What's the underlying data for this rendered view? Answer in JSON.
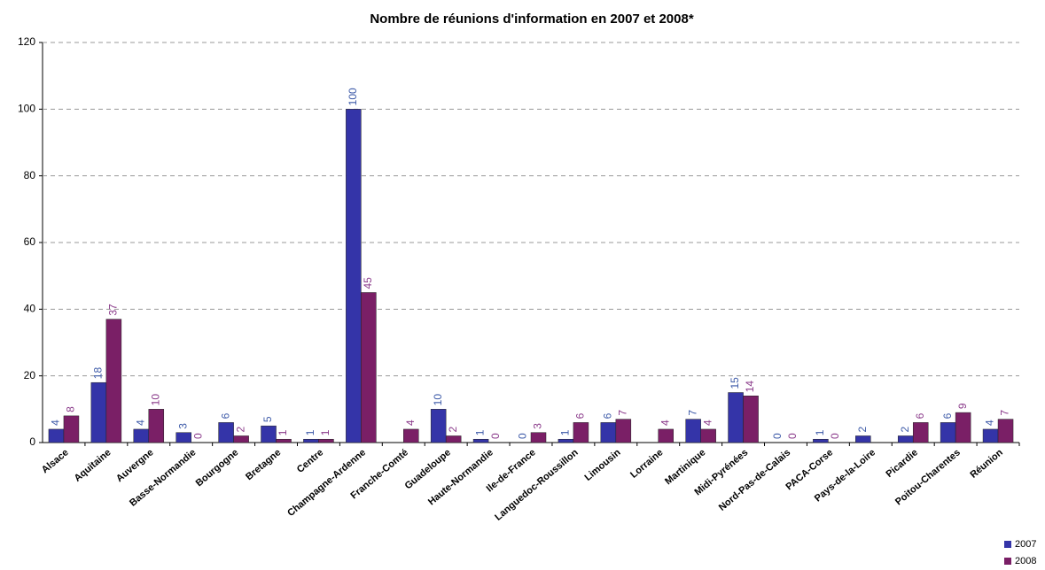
{
  "chart_data": {
    "type": "bar",
    "title": "Nombre de réunions d'information en 2007 et 2008*",
    "categories": [
      "Alsace",
      "Aquitaine",
      "Auvergne",
      "Basse-Normandie",
      "Bourgogne",
      "Bretagne",
      "Centre",
      "Champagne-Ardenne",
      "Franche-Comté",
      "Guadeloupe",
      "Haute-Normandie",
      "Ile-de-France",
      "Languedoc-Roussillon",
      "Limousin",
      "Lorraine",
      "Martinique",
      "Midi-Pyrénées",
      "Nord-Pas-de-Calais",
      "PACA-Corse",
      "Pays-de-la-Loire",
      "Picardie",
      "Poitou-Charentes",
      "Réunion"
    ],
    "series": [
      {
        "name": "2007",
        "color": "#3434a8",
        "label_color": "#3d5aa8",
        "values": [
          4,
          18,
          4,
          3,
          6,
          5,
          1,
          100,
          null,
          10,
          1,
          0,
          1,
          6,
          null,
          7,
          15,
          0,
          1,
          2,
          2,
          6,
          4
        ]
      },
      {
        "name": "2008",
        "color": "#7a1f66",
        "label_color": "#8a3a8a",
        "values": [
          8,
          37,
          10,
          0,
          2,
          1,
          1,
          45,
          4,
          2,
          0,
          3,
          6,
          7,
          4,
          4,
          14,
          0,
          0,
          null,
          6,
          9,
          7
        ]
      }
    ],
    "ylim": [
      0,
      120
    ],
    "yticks": [
      0,
      20,
      40,
      60,
      80,
      100,
      120
    ],
    "grid": true
  }
}
